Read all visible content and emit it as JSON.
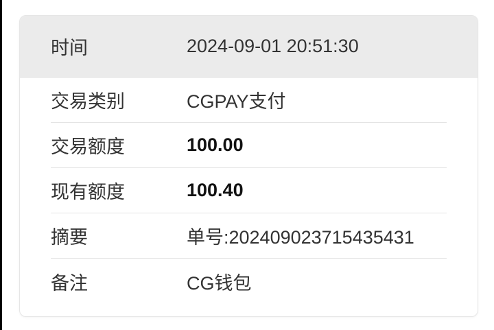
{
  "page": {
    "background_color": "#ffffff",
    "edge_bar_color": "#000000"
  },
  "card": {
    "colors": {
      "header_background": "#ebebeb",
      "header_divider": "#dcdcdc",
      "row_divider": "#e4e4e4",
      "border": "#e6e6e6",
      "text": "#333333",
      "bold_text": "#111111"
    },
    "rows": [
      {
        "label": "时间",
        "value": "2024-09-01 20:51:30"
      },
      {
        "label": "交易类别",
        "value": "CGPAY支付"
      },
      {
        "label": "交易额度",
        "value": "100.00"
      },
      {
        "label": "现有额度",
        "value": "100.40"
      },
      {
        "label": "摘要",
        "value": "单号:202409023715435431"
      },
      {
        "label": "备注",
        "value": "CG钱包"
      }
    ]
  }
}
